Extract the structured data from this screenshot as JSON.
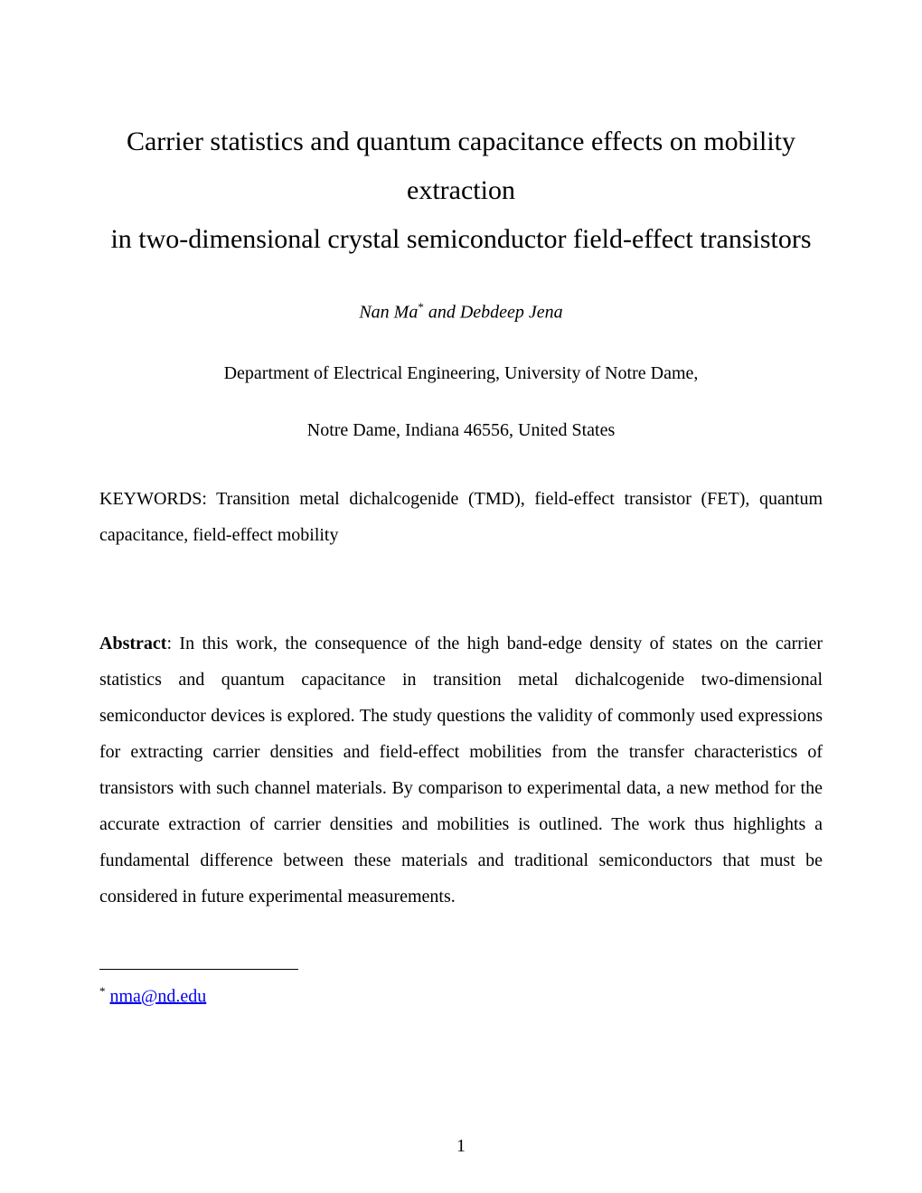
{
  "title_line1": "Carrier statistics and quantum capacitance effects on mobility extraction",
  "title_line2": "in two-dimensional crystal semiconductor field-effect transistors",
  "authors": {
    "name1": "Nan Ma",
    "superscript": "*",
    "conjunction": " and ",
    "name2": "Debdeep Jena"
  },
  "affiliation": "Department of Electrical Engineering, University of Notre Dame,",
  "location": "Notre Dame, Indiana 46556, United States",
  "keywords_label": "KEYWORDS: ",
  "keywords_text": "Transition metal dichalcogenide (TMD), field-effect transistor (FET), quantum capacitance, field-effect mobility",
  "abstract_label": "Abstract",
  "abstract_text": ": In this work, the consequence of the high band-edge density of states on the carrier statistics and quantum capacitance in transition metal dichalcogenide two-dimensional semiconductor devices is explored.  The study questions the validity of commonly used expressions for extracting carrier densities and field-effect mobilities from the transfer characteristics of transistors with such channel materials.  By comparison to experimental data, a new method for the accurate extraction of carrier densities and mobilities is outlined.  The work thus highlights a fundamental difference between these materials and traditional semiconductors that must be considered in future experimental measurements.",
  "footnote": {
    "marker": "*",
    "email": "nma@nd.edu"
  },
  "page_number": "1",
  "colors": {
    "background": "#ffffff",
    "text": "#000000",
    "link": "#0000ee"
  },
  "typography": {
    "title_fontsize": 30,
    "body_fontsize": 20,
    "superscript_fontsize": 13,
    "font_family": "Times New Roman",
    "line_height_body": 2.0,
    "line_height_title": 1.8
  }
}
